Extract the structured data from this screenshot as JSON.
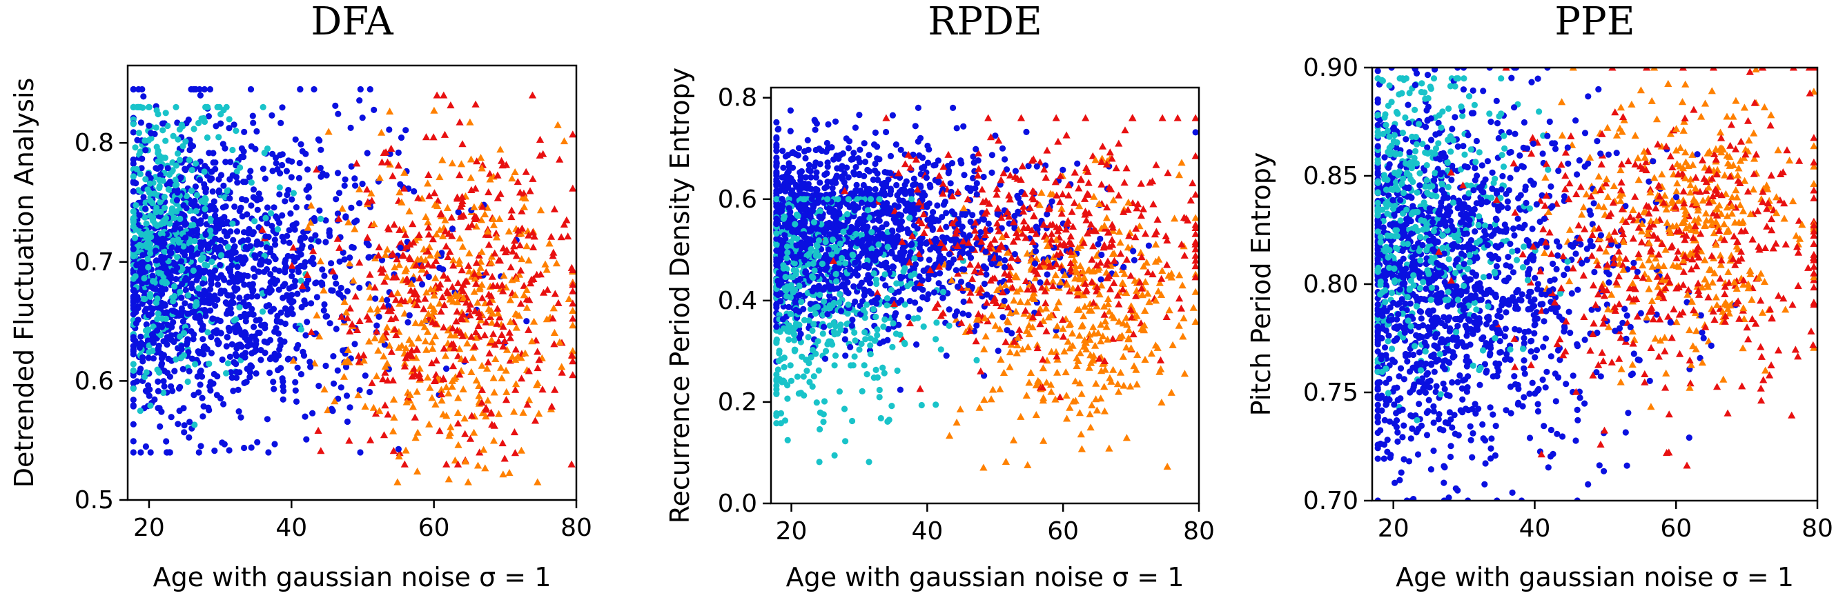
{
  "chart_data": [
    {
      "type": "scatter",
      "title": "DFA",
      "xlabel": "Age with gaussian noise σ = 1",
      "ylabel": "Detrended Fluctuation Analysis",
      "xlim": [
        17,
        80
      ],
      "ylim": [
        0.5,
        0.865
      ],
      "xticks": [
        20,
        40,
        60,
        80
      ],
      "yticks": [
        0.5,
        0.6,
        0.7,
        0.8
      ],
      "xticklabels": [
        "20",
        "40",
        "60",
        "80"
      ],
      "yticklabels": [
        "0.5",
        "0.6",
        "0.7",
        "0.8"
      ],
      "grid": false,
      "clusters": [
        {
          "color": "#0a10e0",
          "marker": "circle",
          "n": 1500,
          "x_mean": 32,
          "x_sd": 12,
          "x_skew": "young",
          "y_mean": 0.69,
          "y_sd": 0.06,
          "y_min": 0.54,
          "y_max": 0.845
        },
        {
          "color": "#19c3c9",
          "marker": "circle",
          "n": 450,
          "x_mean": 24,
          "x_sd": 6,
          "x_skew": "young",
          "y_mean": 0.72,
          "y_sd": 0.06,
          "y_min": 0.54,
          "y_max": 0.83
        },
        {
          "color": "#ff8000",
          "marker": "triangle",
          "n": 380,
          "x_mean": 62,
          "x_sd": 8,
          "x_skew": "old",
          "y_mean": 0.66,
          "y_sd": 0.065,
          "y_min": 0.515,
          "y_max": 0.845
        },
        {
          "color": "#e81010",
          "marker": "triangle",
          "n": 420,
          "x_mean": 63,
          "x_sd": 9,
          "x_skew": "old",
          "y_mean": 0.67,
          "y_sd": 0.065,
          "y_min": 0.53,
          "y_max": 0.84
        }
      ]
    },
    {
      "type": "scatter",
      "title": "RPDE",
      "xlabel": "Age with gaussian noise σ = 1",
      "ylabel": "Recurrence Period Density Entropy",
      "xlim": [
        17,
        80
      ],
      "ylim": [
        0.0,
        0.82
      ],
      "xticks": [
        20,
        40,
        60,
        80
      ],
      "yticks": [
        0.0,
        0.2,
        0.4,
        0.6,
        0.8
      ],
      "xticklabels": [
        "20",
        "40",
        "60",
        "80"
      ],
      "yticklabels": [
        "0.0",
        "0.2",
        "0.4",
        "0.6",
        "0.8"
      ],
      "grid": false,
      "clusters": [
        {
          "color": "#0a10e0",
          "marker": "circle",
          "n": 1500,
          "x_mean": 34,
          "x_sd": 13,
          "x_skew": "young",
          "y_mean": 0.53,
          "y_sd": 0.09,
          "y_min": 0.06,
          "y_max": 0.78
        },
        {
          "color": "#19c3c9",
          "marker": "circle",
          "n": 450,
          "x_mean": 26,
          "x_sd": 8,
          "x_skew": "young",
          "y_mean": 0.4,
          "y_sd": 0.12,
          "y_min": 0.06,
          "y_max": 0.6
        },
        {
          "color": "#ff8000",
          "marker": "triangle",
          "n": 380,
          "x_mean": 62,
          "x_sd": 8,
          "x_skew": "old",
          "y_mean": 0.38,
          "y_sd": 0.12,
          "y_min": 0.03,
          "y_max": 0.68
        },
        {
          "color": "#e81010",
          "marker": "triangle",
          "n": 420,
          "x_mean": 58,
          "x_sd": 12,
          "x_skew": "old",
          "y_mean": 0.52,
          "y_sd": 0.11,
          "y_min": 0.15,
          "y_max": 0.76
        }
      ]
    },
    {
      "type": "scatter",
      "title": "PPE",
      "xlabel": "Age with gaussian noise σ = 1",
      "ylabel": "Pitch Period Entropy",
      "xlim": [
        17,
        80
      ],
      "ylim": [
        0.7,
        0.9
      ],
      "xticks": [
        20,
        40,
        60,
        80
      ],
      "yticks": [
        0.7,
        0.75,
        0.8,
        0.85,
        0.9
      ],
      "xticklabels": [
        "20",
        "40",
        "60",
        "80"
      ],
      "yticklabels": [
        "0.70",
        "0.75",
        "0.80",
        "0.85",
        "0.90"
      ],
      "grid": false,
      "clusters": [
        {
          "color": "#0a10e0",
          "marker": "circle",
          "n": 1500,
          "x_mean": 30,
          "x_sd": 12,
          "x_skew": "young",
          "y_mean": 0.8,
          "y_sd": 0.04,
          "y_min": 0.7,
          "y_max": 0.9
        },
        {
          "color": "#19c3c9",
          "marker": "circle",
          "n": 450,
          "x_mean": 25,
          "x_sd": 7,
          "x_skew": "young",
          "y_mean": 0.83,
          "y_sd": 0.035,
          "y_min": 0.73,
          "y_max": 0.895
        },
        {
          "color": "#ff8000",
          "marker": "triangle",
          "n": 380,
          "x_mean": 62,
          "x_sd": 8,
          "x_skew": "old",
          "y_mean": 0.825,
          "y_sd": 0.03,
          "y_min": 0.7,
          "y_max": 0.9
        },
        {
          "color": "#e81010",
          "marker": "triangle",
          "n": 420,
          "x_mean": 60,
          "x_sd": 12,
          "x_skew": "old",
          "y_mean": 0.815,
          "y_sd": 0.035,
          "y_min": 0.7,
          "y_max": 0.9
        }
      ]
    }
  ]
}
